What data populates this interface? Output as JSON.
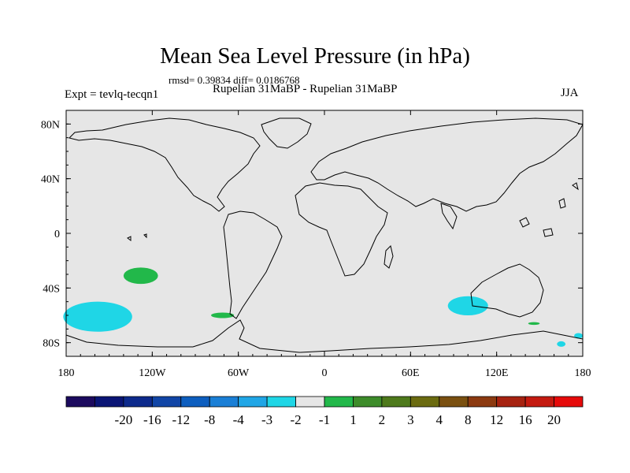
{
  "chart_data": {
    "type": "heatmap",
    "title": "Mean Sea Level Pressure (in hPa)",
    "stats_line": "rmsd= 0.39834 diff= 0.0186768",
    "experiment_label": "Expt = tevlq-tecqn1",
    "subtitle": "Rupelian  31MaBP - Rupelian  31MaBP",
    "season": "JJA",
    "xlim": [
      -180,
      180
    ],
    "ylim": [
      -90,
      90
    ],
    "x_ticks": [
      {
        "value": -180,
        "label": "180"
      },
      {
        "value": -120,
        "label": "120W"
      },
      {
        "value": -60,
        "label": "60W"
      },
      {
        "value": 0,
        "label": "0"
      },
      {
        "value": 60,
        "label": "60E"
      },
      {
        "value": 120,
        "label": "120E"
      },
      {
        "value": 180,
        "label": "180"
      }
    ],
    "y_ticks": [
      {
        "value": 80,
        "label": "80N"
      },
      {
        "value": 40,
        "label": "40N"
      },
      {
        "value": 0,
        "label": "0"
      },
      {
        "value": -40,
        "label": "40S"
      },
      {
        "value": -80,
        "label": "80S"
      }
    ],
    "background_color": "#e6e6e6",
    "colorbar": {
      "colors": [
        "#1c0a5e",
        "#0a1575",
        "#0d2a8c",
        "#1145a6",
        "#0d5ebf",
        "#1a7fd6",
        "#20a6e6",
        "#1fd6e6",
        "#e6e6e6",
        "#22b84a",
        "#3d8c2a",
        "#4e7a1c",
        "#6b6b10",
        "#7a5010",
        "#8c3a10",
        "#a62210",
        "#c41a10",
        "#e60a0a"
      ],
      "labels": [
        "-20",
        "-16",
        "-12",
        "-8",
        "-4",
        "-3",
        "-2",
        "-1",
        "1",
        "2",
        "3",
        "4",
        "8",
        "12",
        "16",
        "20"
      ]
    },
    "anomaly_regions": [
      {
        "level": "-2 to -1",
        "color": "#1fd6e6",
        "lon_center": -158,
        "lat_center": -61,
        "lon_radius": 24,
        "lat_radius": 11
      },
      {
        "level": "-2 to -1",
        "color": "#1fd6e6",
        "lon_center": 100,
        "lat_center": -53,
        "lon_radius": 14,
        "lat_radius": 7
      },
      {
        "level": "1 to 2",
        "color": "#22b84a",
        "lon_center": -128,
        "lat_center": -31,
        "lon_radius": 12,
        "lat_radius": 6
      },
      {
        "level": "1 to 2",
        "color": "#22b84a",
        "lon_center": -71,
        "lat_center": -60,
        "lon_radius": 8,
        "lat_radius": 2
      },
      {
        "level": "1 to 2",
        "color": "#22b84a",
        "lon_center": 146,
        "lat_center": -66,
        "lon_radius": 4,
        "lat_radius": 1
      },
      {
        "level": "-2 to -1",
        "color": "#1fd6e6",
        "lon_center": 165,
        "lat_center": -81,
        "lon_radius": 3,
        "lat_radius": 2
      },
      {
        "level": "-2 to -1",
        "color": "#1fd6e6",
        "lon_center": 177,
        "lat_center": -75,
        "lon_radius": 3,
        "lat_radius": 2
      }
    ]
  }
}
